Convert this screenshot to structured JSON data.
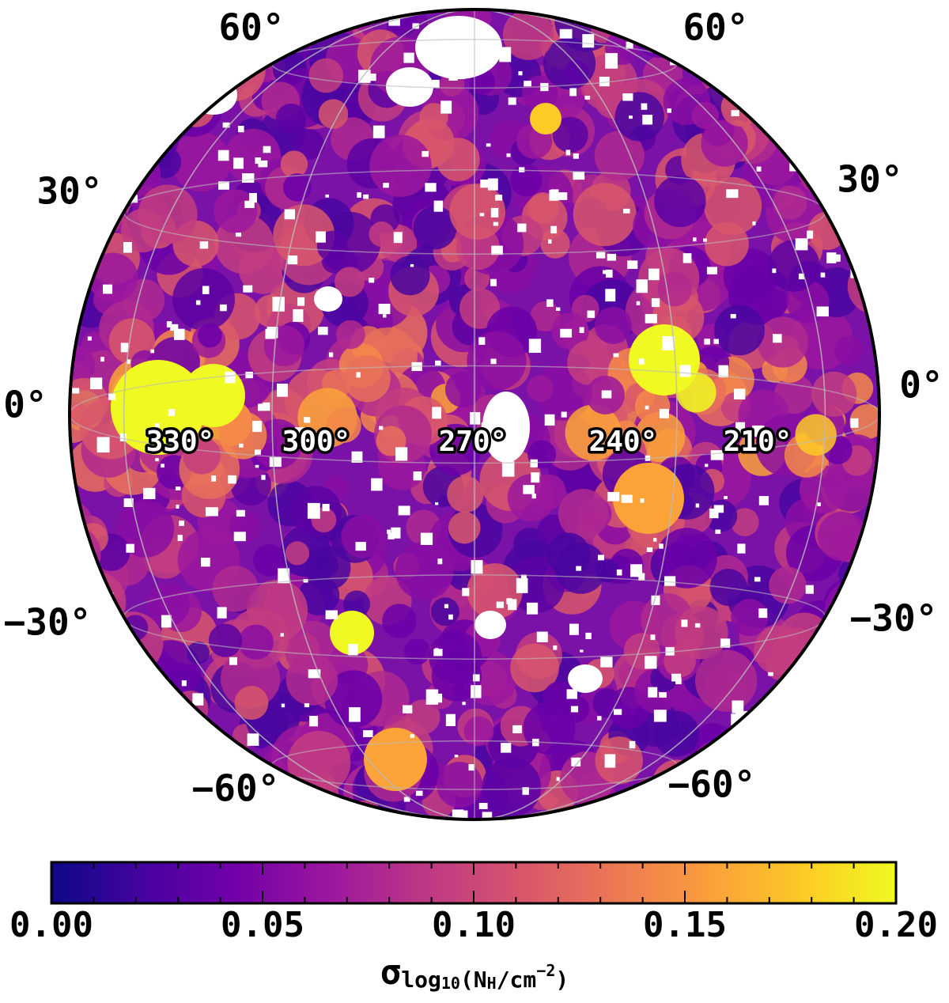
{
  "map": {
    "latitude_labels_left": [
      "60°",
      "30°",
      "0°",
      "−30°",
      "−60°"
    ],
    "latitude_labels_right": [
      "60°",
      "30°",
      "0°",
      "−30°",
      "−60°"
    ],
    "longitude_labels": [
      "330°",
      "300°",
      "270°",
      "240°",
      "210°"
    ]
  },
  "colorbar": {
    "range": [
      0,
      0.2
    ],
    "ticks": [
      {
        "value": 0,
        "label": "0.00"
      },
      {
        "value": 0.05,
        "label": "0.05"
      },
      {
        "value": 0.1,
        "label": "0.10"
      },
      {
        "value": 0.15,
        "label": "0.15"
      },
      {
        "value": 0.2,
        "label": "0.20"
      }
    ],
    "minor_ticks": [
      0.01,
      0.02,
      0.03,
      0.04,
      0.06,
      0.07,
      0.08,
      0.09,
      0.11,
      0.12,
      0.13,
      0.14,
      0.16,
      0.17,
      0.18,
      0.19
    ],
    "label": {
      "symbol": "σ",
      "sub": "log",
      "subsub": "10",
      "open": "(N",
      "h": "H",
      "unit": "/cm",
      "exp": "−2",
      "close": ")"
    }
  }
}
